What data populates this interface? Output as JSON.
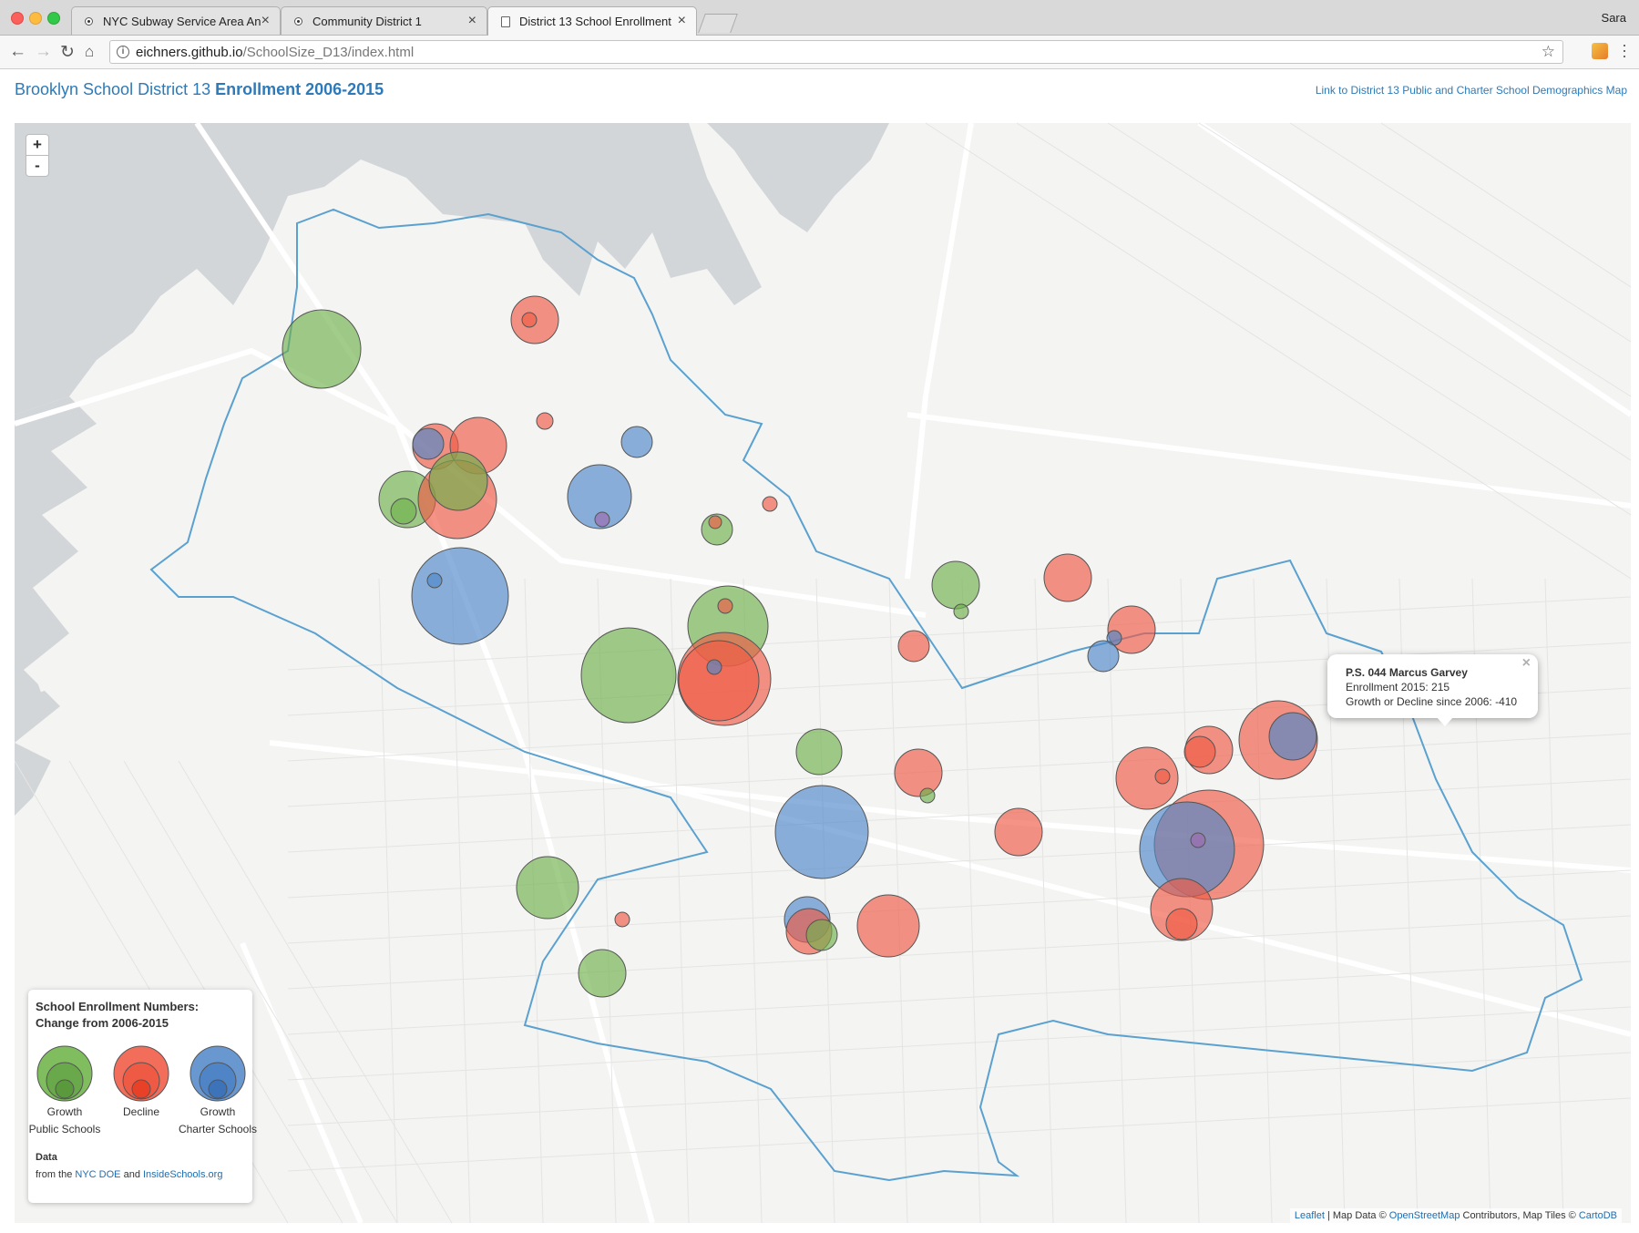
{
  "browser": {
    "tabs": [
      {
        "title": "NYC Subway Service Area An",
        "active": false,
        "favicon": "globe-icon"
      },
      {
        "title": "Community District 1",
        "active": false,
        "favicon": "globe-icon"
      },
      {
        "title": "District 13 School Enrollment",
        "active": true,
        "favicon": "page-icon"
      }
    ],
    "profile_name": "Sara",
    "url_host": "eichners.github.io",
    "url_path": "/SchoolSize_D13/index.html"
  },
  "page": {
    "title_plain": "Brooklyn School District 13 ",
    "title_bold": "Enrollment 2006-2015",
    "link_text": "Link to District 13 Public and Charter School Demographics Map",
    "title_color": "#2e7ab8"
  },
  "map": {
    "zoom_in_label": "+",
    "zoom_out_label": "-",
    "colors": {
      "growth": "#6fb04c",
      "decline": "#ef5b45",
      "charter": "#4f87c9",
      "boundary": "#5ba1cf",
      "water": "#d3d6d9"
    },
    "popup": {
      "school": "P.S. 044 Marcus Garvey",
      "enrollment_line": "Enrollment 2015: 215",
      "change_line": "Growth or Decline since 2006: -410",
      "close_label": "×"
    },
    "legend": {
      "title_line1": "School Enrollment Numbers:",
      "title_line2": "Change from 2006-2015",
      "items": [
        {
          "label": "Growth",
          "sub": "Public Schools",
          "color": "#6fb04c"
        },
        {
          "label": "Decline",
          "sub": "",
          "color": "#ef5b45"
        },
        {
          "label": "Growth",
          "sub": "Charter Schools",
          "color": "#4f87c9"
        }
      ],
      "data_title": "Data",
      "data_prefix": "from the ",
      "data_link1": "NYC DOE",
      "data_and": " and ",
      "data_link2": "InsideSchools.org"
    },
    "attribution": {
      "leaflet": "Leaflet",
      "text1": " | Map Data © ",
      "osm": "OpenStreetMap",
      "text2": " Contributors, Map Tiles © ",
      "carto": "CartoDB"
    }
  }
}
